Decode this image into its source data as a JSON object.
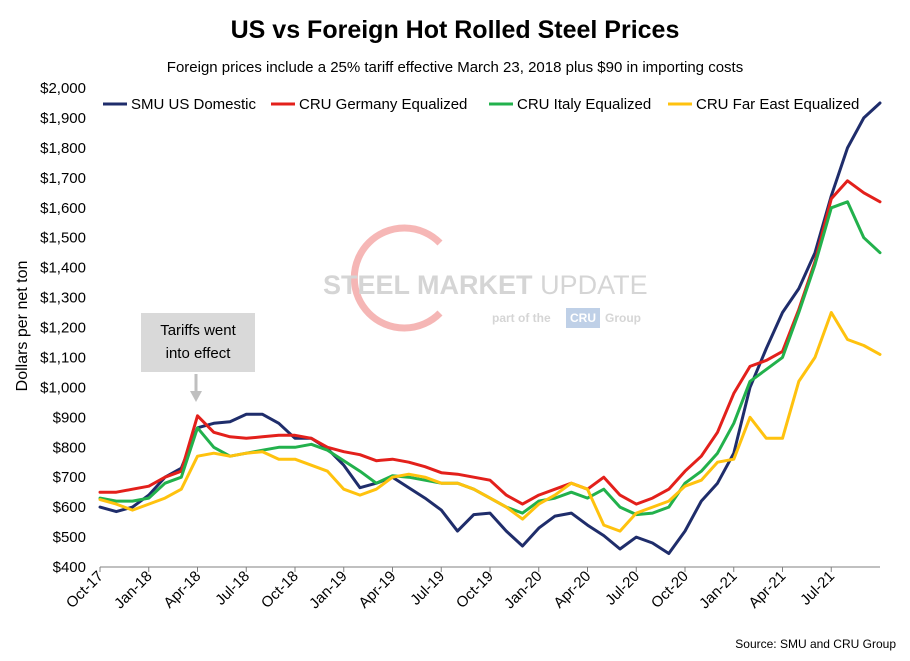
{
  "chart_data": {
    "type": "line",
    "title": "US vs Foreign Hot Rolled Steel Prices",
    "subtitle": "Foreign prices include a 25% tariff effective March 23, 2018 plus $90 in importing costs",
    "ylabel": "Dollars per net ton",
    "xlabel": "",
    "ylim": [
      400,
      2000
    ],
    "y_ticks": [
      "$400",
      "$500",
      "$600",
      "$700",
      "$800",
      "$900",
      "$1,000",
      "$1,100",
      "$1,200",
      "$1,300",
      "$1,400",
      "$1,500",
      "$1,600",
      "$1,700",
      "$1,800",
      "$1,900",
      "$2,000"
    ],
    "x_tick_labels": [
      "Oct-17",
      "Jan-18",
      "Apr-18",
      "Jul-18",
      "Oct-18",
      "Jan-19",
      "Apr-19",
      "Jul-19",
      "Oct-19",
      "Jan-20",
      "Apr-20",
      "Jul-20",
      "Oct-20",
      "Jan-21",
      "Apr-21",
      "Jul-21"
    ],
    "x_dates": [
      "2017-10",
      "2017-11",
      "2017-12",
      "2018-01",
      "2018-02",
      "2018-03",
      "2018-04",
      "2018-05",
      "2018-06",
      "2018-07",
      "2018-08",
      "2018-09",
      "2018-10",
      "2018-11",
      "2018-12",
      "2019-01",
      "2019-02",
      "2019-03",
      "2019-04",
      "2019-05",
      "2019-06",
      "2019-07",
      "2019-08",
      "2019-09",
      "2019-10",
      "2019-11",
      "2019-12",
      "2020-01",
      "2020-02",
      "2020-03",
      "2020-04",
      "2020-05",
      "2020-06",
      "2020-07",
      "2020-08",
      "2020-09",
      "2020-10",
      "2020-11",
      "2020-12",
      "2021-01",
      "2021-02",
      "2021-03",
      "2021-04",
      "2021-05",
      "2021-06",
      "2021-07",
      "2021-08",
      "2021-09",
      "2021-10"
    ],
    "grid": false,
    "legend_position": "top",
    "series": [
      {
        "name": "SMU US Domestic",
        "color": "#1f2d6b",
        "values": [
          600,
          585,
          600,
          640,
          700,
          730,
          865,
          880,
          885,
          910,
          910,
          880,
          830,
          830,
          795,
          740,
          665,
          680,
          700,
          665,
          630,
          590,
          520,
          575,
          580,
          520,
          470,
          530,
          570,
          580,
          540,
          505,
          460,
          500,
          480,
          445,
          520,
          620,
          680,
          780,
          1000,
          1130,
          1250,
          1330,
          1450,
          1640,
          1800,
          1900,
          1950
        ]
      },
      {
        "name": "CRU Germany Equalized",
        "color": "#e3201b",
        "values": [
          650,
          650,
          660,
          670,
          700,
          720,
          905,
          850,
          835,
          830,
          835,
          840,
          840,
          830,
          800,
          785,
          775,
          755,
          760,
          750,
          735,
          715,
          710,
          700,
          690,
          640,
          610,
          640,
          660,
          680,
          660,
          700,
          640,
          610,
          630,
          660,
          720,
          770,
          850,
          980,
          1070,
          1090,
          1120,
          1260,
          1420,
          1630,
          1690,
          1650,
          1620
        ]
      },
      {
        "name": "CRU Italy Equalized",
        "color": "#22b14c",
        "values": [
          630,
          620,
          620,
          630,
          680,
          700,
          865,
          800,
          770,
          780,
          790,
          800,
          800,
          810,
          790,
          755,
          720,
          680,
          705,
          700,
          690,
          680,
          680,
          660,
          630,
          600,
          580,
          620,
          630,
          650,
          630,
          660,
          600,
          575,
          580,
          600,
          680,
          720,
          780,
          880,
          1020,
          1060,
          1100,
          1250,
          1410,
          1600,
          1620,
          1500,
          1450
        ]
      },
      {
        "name": "CRU Far East Equalized",
        "color": "#ffc20e",
        "values": [
          625,
          610,
          590,
          610,
          630,
          660,
          770,
          780,
          770,
          780,
          785,
          760,
          760,
          740,
          720,
          660,
          640,
          660,
          700,
          710,
          700,
          680,
          680,
          660,
          630,
          600,
          560,
          610,
          640,
          680,
          660,
          540,
          520,
          580,
          600,
          620,
          670,
          690,
          750,
          760,
          900,
          830,
          830,
          1020,
          1100,
          1250,
          1160,
          1140,
          1110
        ]
      }
    ],
    "annotation": {
      "text_lines": [
        "Tariffs went",
        "into effect"
      ],
      "points_to": "2018-04"
    },
    "source": "Source: SMU and CRU Group"
  },
  "watermark": {
    "line1a": "STEEL",
    "line1b": "MARKET",
    "line1c": "UPDATE",
    "line2a": "part of the",
    "line2b": "CRU",
    "line2c": "Group"
  }
}
